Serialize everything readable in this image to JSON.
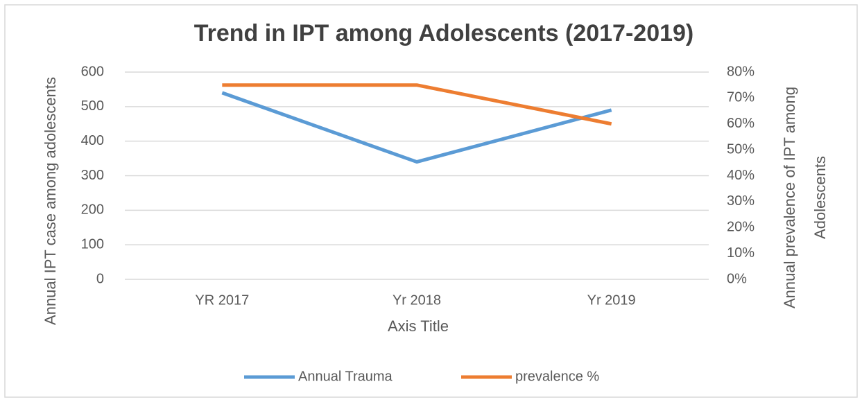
{
  "chart_data": {
    "type": "line",
    "title": "Trend in IPT among Adolescents (2017-2019)",
    "xlabel": "Axis Title",
    "ylabel": "Annual IPT case among adolescents",
    "y2label": [
      "Annual prevalence of IPT among",
      "Adolescents"
    ],
    "categories": [
      "YR 2017",
      "Yr 2018",
      "Yr 2019"
    ],
    "series": [
      {
        "name": "Annual Trauma",
        "color": "#5b9bd5",
        "values": [
          540,
          340,
          490
        ]
      },
      {
        "name": "prevalence %",
        "color": "#ed7d31",
        "values": [
          75,
          75,
          60
        ],
        "axis": "y2"
      }
    ],
    "ylim": [
      0,
      600
    ],
    "yticks": [
      0,
      100,
      200,
      300,
      400,
      500,
      600
    ],
    "y2lim": [
      0,
      80
    ],
    "y2ticks": [
      {
        "value": 0,
        "label": "0%"
      },
      {
        "value": 10,
        "label": "10%"
      },
      {
        "value": 20,
        "label": "20%"
      },
      {
        "value": 30,
        "label": "30%"
      },
      {
        "value": 40,
        "label": "40%"
      },
      {
        "value": 50,
        "label": "50%"
      },
      {
        "value": 60,
        "label": "60%"
      },
      {
        "value": 70,
        "label": "70%"
      },
      {
        "value": 80,
        "label": "80%"
      }
    ],
    "grid": true,
    "legend": "bottom"
  }
}
